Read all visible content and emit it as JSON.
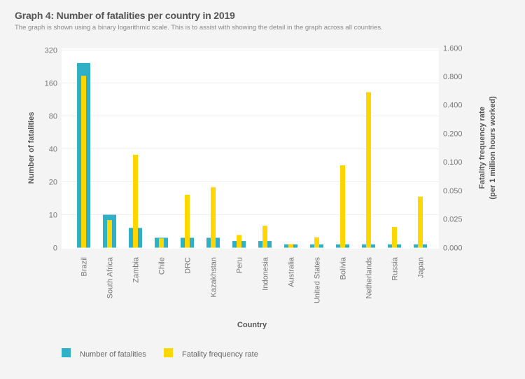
{
  "chart_data": {
    "type": "bar",
    "title": "Graph 4: Number of fatalities per country in 2019",
    "subtitle": "The graph is shown using a binary logarithmic scale. This is to assist with showing the detail in the graph across all countries.",
    "xlabel": "Country",
    "ylabel_left": "Number of fatalities",
    "ylabel_right": [
      "Fatality frequency rate",
      "(per 1 million hours worked)"
    ],
    "y_scale": "log2",
    "left_ticks": [
      "0",
      "10",
      "20",
      "40",
      "80",
      "160",
      "320"
    ],
    "right_ticks": [
      "0.000",
      "0.025",
      "0.050",
      "0.100",
      "0.200",
      "0.400",
      "0.800",
      "1.600"
    ],
    "ylim_left": [
      0,
      320
    ],
    "ylim_right": [
      0,
      1.6
    ],
    "grid": true,
    "legend_position": "bottom-left",
    "categories": [
      "Brazil",
      "South Africa",
      "Zambia",
      "Chile",
      "DRC",
      "Kazakhstan",
      "Peru",
      "Indonesia",
      "Australia",
      "United States",
      "Bolivia",
      "Netherlands",
      "Russia",
      "Japan"
    ],
    "series": [
      {
        "name": "Number of fatalities",
        "axis": "left",
        "color": "#2fb0c7",
        "values": [
          244,
          10,
          6,
          3,
          3,
          3,
          2,
          2,
          1,
          1,
          1,
          1,
          1,
          1
        ]
      },
      {
        "name": "Fatality frequency rate",
        "axis": "right",
        "color": "#ffd700",
        "values": [
          0.81,
          0.024,
          0.119,
          0.008,
          0.045,
          0.054,
          0.011,
          0.019,
          0.003,
          0.009,
          0.092,
          0.545,
          0.018,
          0.043
        ]
      }
    ]
  }
}
